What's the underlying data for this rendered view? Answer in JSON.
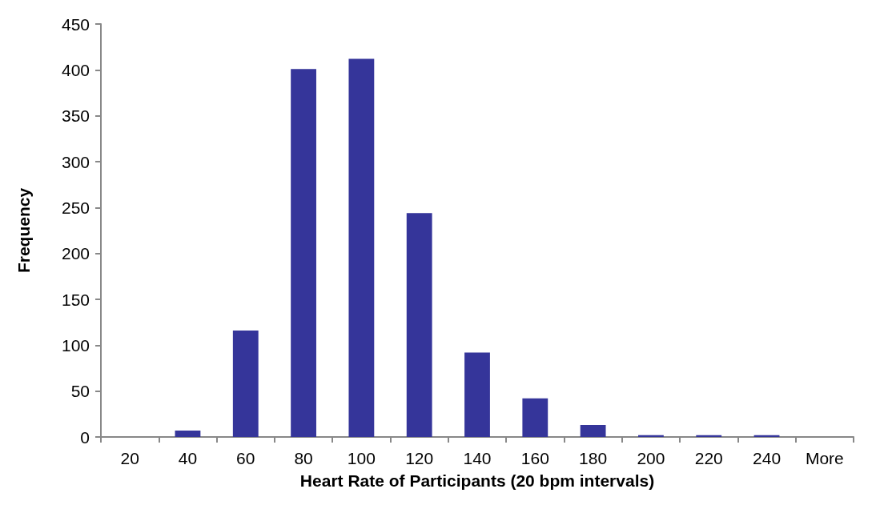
{
  "chart_data": {
    "type": "bar",
    "xlabel": "Heart Rate of Participants (20 bpm intervals)",
    "ylabel": "Frequency",
    "categories": [
      "20",
      "40",
      "60",
      "80",
      "100",
      "120",
      "140",
      "160",
      "180",
      "200",
      "220",
      "240",
      "More"
    ],
    "values": [
      0,
      7,
      116,
      401,
      412,
      244,
      92,
      42,
      13,
      2,
      2,
      2,
      0
    ],
    "color": "#35359a",
    "ylim": [
      0,
      450
    ],
    "yticks": [
      0,
      50,
      100,
      150,
      200,
      250,
      300,
      350,
      400,
      450
    ]
  }
}
